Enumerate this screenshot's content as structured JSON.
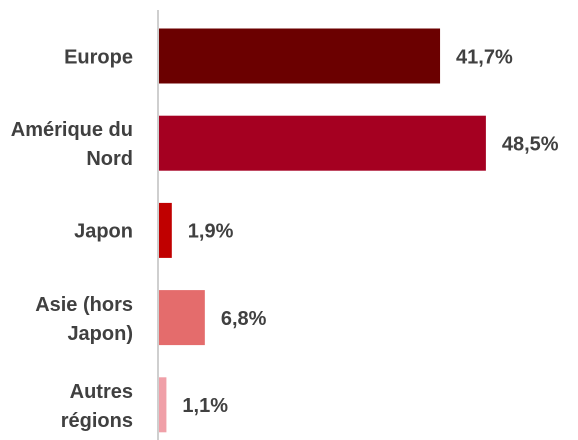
{
  "chart_data": {
    "type": "bar",
    "orientation": "horizontal",
    "categories": [
      "Europe",
      "Amérique du Nord",
      "Japon",
      "Asie (hors Japon)",
      "Autres régions"
    ],
    "values": [
      41.7,
      48.5,
      1.9,
      6.8,
      1.1
    ],
    "value_labels": [
      "41,7%",
      "48,5%",
      "1,9%",
      "6,8%",
      "1,1%"
    ],
    "colors": [
      "#6b0000",
      "#a50021",
      "#c00000",
      "#e46c6c",
      "#f0a0a8"
    ]
  }
}
